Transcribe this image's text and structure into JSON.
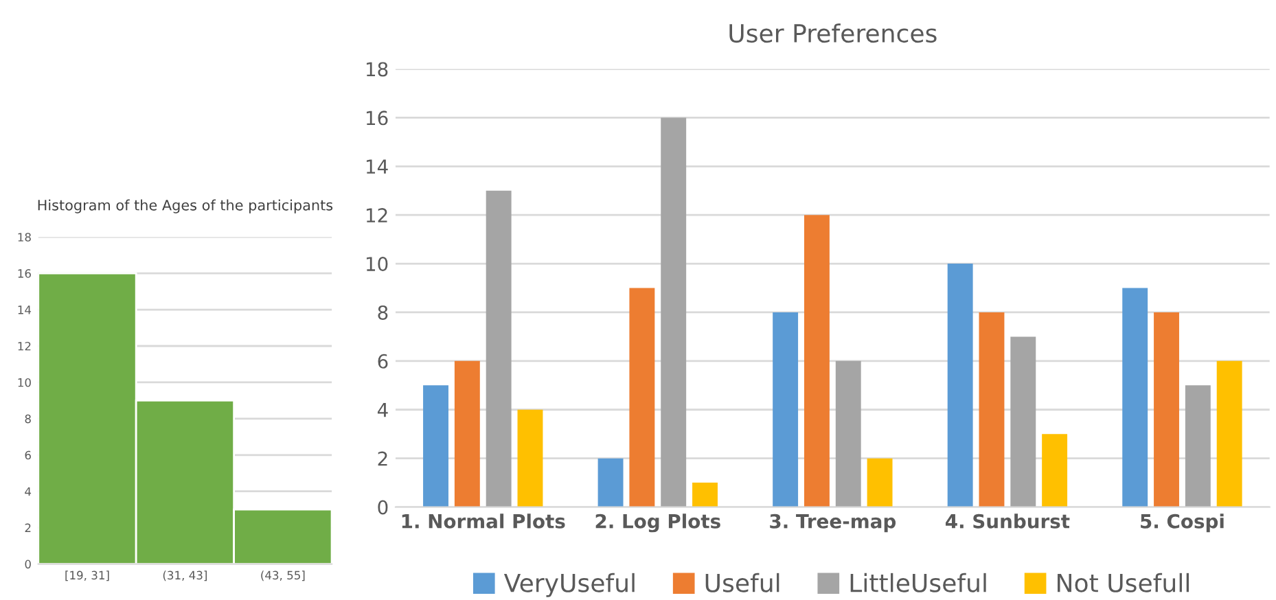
{
  "chart_data": [
    {
      "type": "histogram",
      "title": "Histogram of the Ages of the participants",
      "categories": [
        "[19, 31]",
        "(31, 43]",
        "(43, 55]"
      ],
      "values": [
        16,
        9,
        3
      ],
      "color": "#70ad47",
      "ylim": [
        0,
        18
      ],
      "yticks": [
        0,
        2,
        4,
        6,
        8,
        10,
        12,
        14,
        16,
        18
      ],
      "grid": "y"
    },
    {
      "type": "bar",
      "title": "User Preferences",
      "categories": [
        "1. Normal Plots",
        "2. Log Plots",
        "3. Tree-map",
        "4. Sunburst",
        "5. Cospi"
      ],
      "series": [
        {
          "name": "VeryUseful",
          "color": "#5b9bd5",
          "values": [
            5,
            2,
            8,
            10,
            9
          ]
        },
        {
          "name": "Useful",
          "color": "#ed7d31",
          "values": [
            6,
            9,
            12,
            8,
            8
          ]
        },
        {
          "name": "LittleUseful",
          "color": "#a5a5a5",
          "values": [
            13,
            16,
            6,
            7,
            5
          ]
        },
        {
          "name": "Not Usefull",
          "color": "#ffc000",
          "values": [
            4,
            1,
            2,
            3,
            6
          ]
        }
      ],
      "ylim": [
        0,
        18
      ],
      "yticks": [
        0,
        2,
        4,
        6,
        8,
        10,
        12,
        14,
        16,
        18
      ],
      "grid": "y",
      "legend": "bottom"
    }
  ]
}
